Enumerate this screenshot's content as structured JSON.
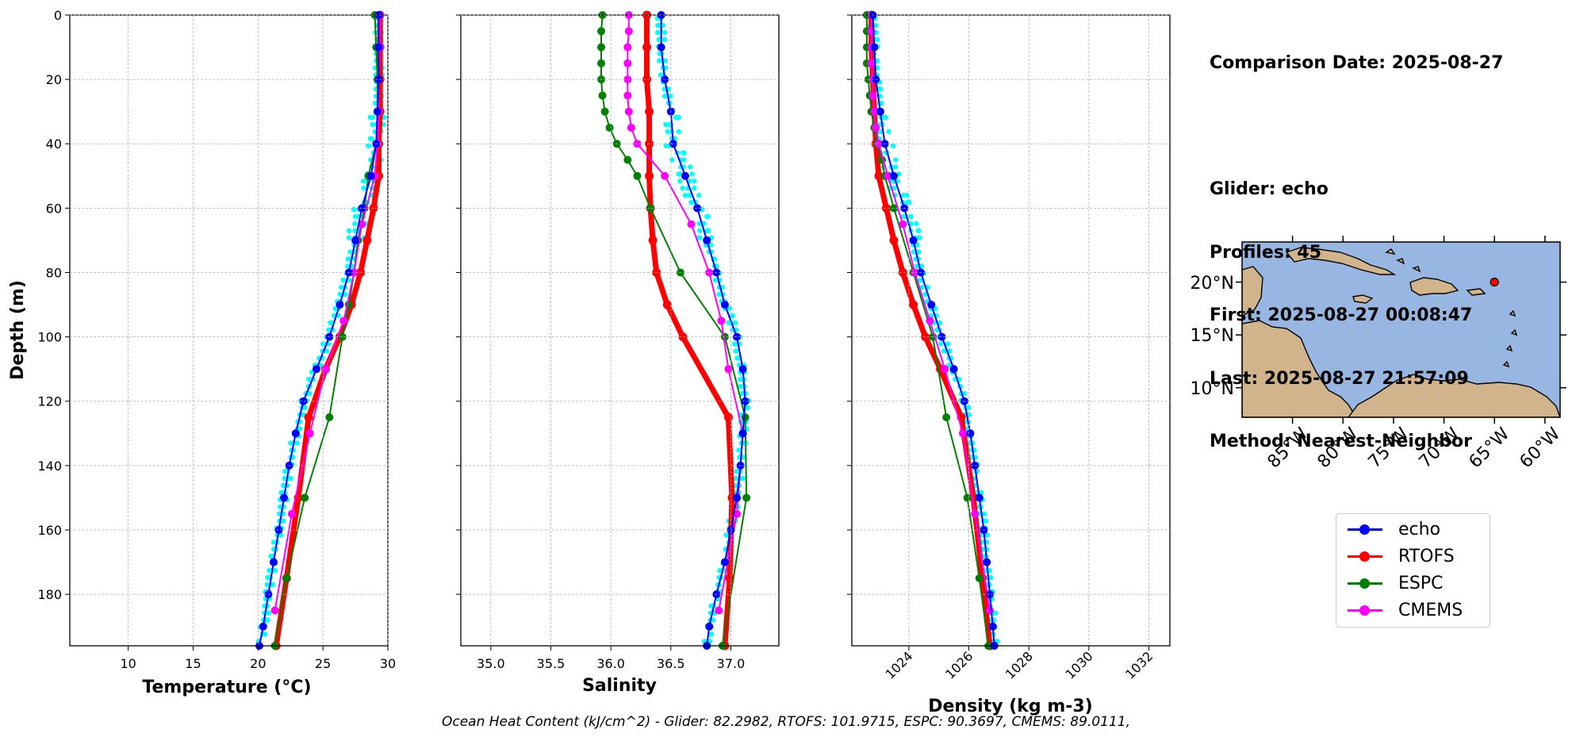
{
  "info": {
    "comparison_date": "Comparison Date: 2025-08-27",
    "glider": "Glider: echo",
    "profiles": "Profiles: 45",
    "first": "First: 2025-08-27 00:08:47",
    "last": "Last: 2025-08-27 21:57:09",
    "method": "Method: Nearest-Neighbor"
  },
  "ohc_text": "Ocean Heat Content (kJ/cm^2) - Glider: 82.2982,  RTOFS: 101.9715,  ESPC: 90.3697,  CMEMS: 89.0111,",
  "colors": {
    "echo": "#0000ff",
    "rtofs": "#ff0000",
    "espc": "#008000",
    "cmems": "#ff00ff",
    "glider_raw": "#00ffff",
    "ocean": "#97b6e1",
    "land": "#d2b48c"
  },
  "legend": [
    {
      "name": "echo",
      "color": "#0000ff"
    },
    {
      "name": "RTOFS",
      "color": "#ff0000"
    },
    {
      "name": "ESPC",
      "color": "#008000"
    },
    {
      "name": "CMEMS",
      "color": "#ff00ff"
    }
  ],
  "map": {
    "lat_ticks": [
      "20°N",
      "15°N",
      "10°N"
    ],
    "lon_ticks": [
      "85°W",
      "80°W",
      "75°W",
      "70°W",
      "65°W",
      "60°W"
    ],
    "glider_position": {
      "lon": -65.0,
      "lat": 20.0
    }
  },
  "chart_data": [
    {
      "type": "line",
      "id": "temperature",
      "xlabel": "Temperature (°C)",
      "ylabel": "Depth (m)",
      "xlim": [
        5.5,
        30
      ],
      "ylim": [
        196,
        0
      ],
      "xticks": [
        10,
        15,
        20,
        25,
        30
      ],
      "yticks": [
        0,
        20,
        40,
        60,
        80,
        100,
        120,
        140,
        160,
        180
      ],
      "grid": true,
      "series": [
        {
          "name": "echo",
          "depth": [
            0,
            10,
            20,
            30,
            40,
            50,
            60,
            70,
            80,
            90,
            100,
            110,
            120,
            130,
            140,
            150,
            160,
            170,
            180,
            190,
            196
          ],
          "values": [
            29.3,
            29.3,
            29.3,
            29.2,
            29.1,
            28.7,
            28.0,
            27.5,
            27.0,
            26.3,
            25.5,
            24.5,
            23.5,
            22.9,
            22.4,
            22.0,
            21.6,
            21.2,
            20.8,
            20.4,
            20.1
          ]
        },
        {
          "name": "RTOFS",
          "depth": [
            0,
            10,
            20,
            30,
            40,
            50,
            60,
            70,
            80,
            90,
            100,
            110,
            125,
            150,
            175,
            196
          ],
          "values": [
            29.4,
            29.4,
            29.4,
            29.4,
            29.3,
            29.3,
            28.9,
            28.4,
            27.9,
            27.2,
            26.3,
            25.2,
            23.9,
            23.1,
            22.2,
            21.4
          ]
        },
        {
          "name": "ESPC",
          "depth": [
            0,
            10,
            20,
            30,
            40,
            50,
            60,
            70,
            80,
            90,
            100,
            125,
            150,
            175,
            196
          ],
          "values": [
            29.0,
            29.1,
            29.2,
            29.2,
            29.1,
            28.5,
            28.2,
            27.7,
            27.4,
            27.0,
            26.5,
            25.5,
            23.6,
            22.2,
            21.3
          ]
        },
        {
          "name": "CMEMS",
          "depth": [
            0,
            10,
            20,
            30,
            40,
            50,
            65,
            80,
            95,
            110,
            130,
            155,
            185
          ],
          "values": [
            29.4,
            29.4,
            29.3,
            29.3,
            29.2,
            29.0,
            28.0,
            27.4,
            26.6,
            25.2,
            24.0,
            22.6,
            21.3
          ]
        }
      ]
    },
    {
      "type": "line",
      "id": "salinity",
      "xlabel": "Salinity",
      "xlim": [
        34.75,
        37.4
      ],
      "ylim": [
        196,
        0
      ],
      "xticks": [
        35.0,
        35.5,
        36.0,
        36.5,
        37.0
      ],
      "grid": true,
      "series": [
        {
          "name": "echo",
          "depth": [
            0,
            10,
            20,
            30,
            40,
            50,
            60,
            70,
            80,
            90,
            100,
            110,
            120,
            130,
            140,
            150,
            160,
            170,
            180,
            190,
            196
          ],
          "values": [
            36.42,
            36.42,
            36.45,
            36.5,
            36.52,
            36.62,
            36.72,
            36.8,
            36.88,
            36.95,
            37.05,
            37.1,
            37.12,
            37.1,
            37.08,
            37.05,
            37.0,
            36.95,
            36.88,
            36.82,
            36.8
          ]
        },
        {
          "name": "RTOFS",
          "depth": [
            0,
            10,
            20,
            30,
            40,
            50,
            60,
            70,
            80,
            90,
            100,
            125,
            150,
            175,
            196
          ],
          "values": [
            36.3,
            36.3,
            36.3,
            36.32,
            36.32,
            36.32,
            36.33,
            36.35,
            36.38,
            36.47,
            36.6,
            36.98,
            37.01,
            36.99,
            36.95
          ]
        },
        {
          "name": "ESPC",
          "depth": [
            0,
            5,
            10,
            15,
            20,
            25,
            30,
            35,
            40,
            45,
            50,
            60,
            80,
            100,
            125,
            150,
            196
          ],
          "values": [
            35.93,
            35.92,
            35.92,
            35.92,
            35.92,
            35.93,
            35.95,
            35.99,
            36.05,
            36.14,
            36.22,
            36.33,
            36.58,
            36.95,
            37.12,
            37.13,
            36.93
          ]
        },
        {
          "name": "CMEMS",
          "depth": [
            0,
            5,
            10,
            15,
            20,
            25,
            30,
            35,
            40,
            50,
            65,
            80,
            95,
            110,
            130,
            155,
            185
          ],
          "values": [
            36.15,
            36.15,
            36.14,
            36.14,
            36.14,
            36.14,
            36.15,
            36.17,
            36.22,
            36.45,
            36.67,
            36.82,
            36.92,
            36.98,
            37.1,
            37.05,
            36.9
          ]
        }
      ]
    },
    {
      "type": "line",
      "id": "density",
      "xlabel": "Density (kg m-3)",
      "xlim": [
        1022.1,
        1032.7
      ],
      "ylim": [
        196,
        0
      ],
      "xticks": [
        1024,
        1026,
        1028,
        1030,
        1032
      ],
      "grid": true,
      "series": [
        {
          "name": "echo",
          "depth": [
            0,
            10,
            20,
            30,
            40,
            50,
            60,
            70,
            80,
            90,
            100,
            110,
            120,
            130,
            140,
            150,
            160,
            170,
            180,
            190,
            196
          ],
          "values": [
            1022.8,
            1022.85,
            1022.9,
            1023.05,
            1023.2,
            1023.5,
            1023.85,
            1024.15,
            1024.4,
            1024.75,
            1025.1,
            1025.5,
            1025.85,
            1026.05,
            1026.2,
            1026.35,
            1026.5,
            1026.6,
            1026.7,
            1026.8,
            1026.85
          ]
        },
        {
          "name": "RTOFS",
          "depth": [
            0,
            10,
            20,
            30,
            40,
            50,
            60,
            70,
            80,
            90,
            100,
            110,
            125,
            150,
            175,
            196
          ],
          "values": [
            1022.75,
            1022.75,
            1022.8,
            1022.85,
            1022.9,
            1023.0,
            1023.25,
            1023.5,
            1023.8,
            1024.15,
            1024.55,
            1025.05,
            1025.75,
            1026.15,
            1026.45,
            1026.7
          ]
        },
        {
          "name": "ESPC",
          "depth": [
            0,
            5,
            10,
            15,
            20,
            25,
            30,
            35,
            40,
            45,
            50,
            60,
            80,
            100,
            125,
            150,
            175,
            196
          ],
          "values": [
            1022.6,
            1022.6,
            1022.6,
            1022.6,
            1022.65,
            1022.7,
            1022.75,
            1022.85,
            1022.95,
            1023.1,
            1023.2,
            1023.5,
            1024.15,
            1024.8,
            1025.25,
            1025.95,
            1026.35,
            1026.65
          ]
        },
        {
          "name": "CMEMS",
          "depth": [
            0,
            5,
            10,
            15,
            20,
            25,
            30,
            35,
            40,
            50,
            65,
            80,
            95,
            110,
            130,
            155,
            185
          ],
          "values": [
            1022.75,
            1022.75,
            1022.75,
            1022.75,
            1022.8,
            1022.8,
            1022.85,
            1022.9,
            1023.0,
            1023.3,
            1023.8,
            1024.2,
            1024.7,
            1025.2,
            1025.8,
            1026.2,
            1026.7
          ]
        }
      ]
    }
  ]
}
